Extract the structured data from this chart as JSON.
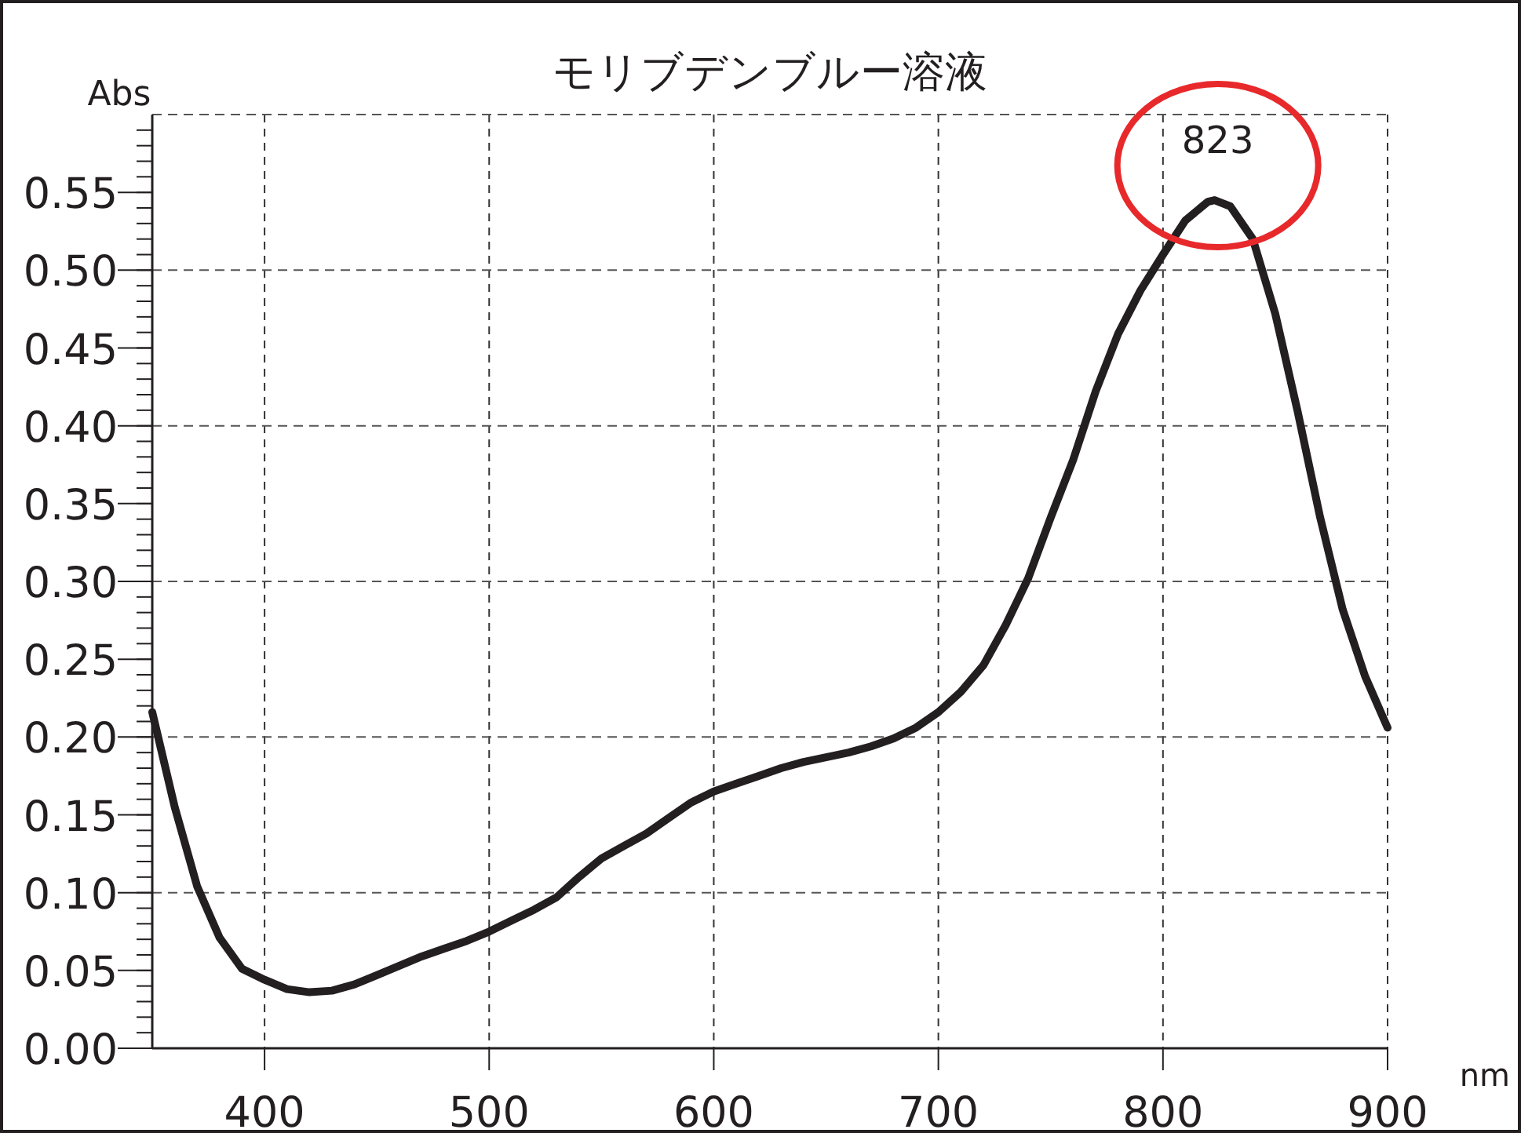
{
  "chart_data": {
    "type": "line",
    "title": "モリブデンブルー溶液",
    "xlabel": "nm",
    "ylabel": "Abs",
    "x": [
      350,
      360,
      370,
      380,
      390,
      400,
      410,
      420,
      430,
      440,
      450,
      460,
      470,
      480,
      490,
      500,
      510,
      520,
      530,
      540,
      550,
      560,
      570,
      580,
      590,
      600,
      610,
      620,
      630,
      640,
      650,
      660,
      670,
      680,
      690,
      700,
      710,
      720,
      730,
      740,
      750,
      760,
      770,
      780,
      790,
      800,
      810,
      820,
      823,
      830,
      840,
      850,
      860,
      870,
      880,
      890,
      900
    ],
    "series": [
      {
        "color": "#231f20",
        "values": [
          0.216,
          0.155,
          0.104,
          0.071,
          0.051,
          0.044,
          0.038,
          0.036,
          0.037,
          0.041,
          0.047,
          0.053,
          0.059,
          0.064,
          0.069,
          0.075,
          0.082,
          0.089,
          0.097,
          0.11,
          0.122,
          0.13,
          0.138,
          0.148,
          0.158,
          0.165,
          0.17,
          0.175,
          0.18,
          0.184,
          0.187,
          0.19,
          0.194,
          0.199,
          0.206,
          0.216,
          0.229,
          0.246,
          0.272,
          0.302,
          0.341,
          0.378,
          0.422,
          0.459,
          0.487,
          0.51,
          0.532,
          0.544,
          0.545,
          0.541,
          0.52,
          0.472,
          0.409,
          0.341,
          0.282,
          0.239,
          0.206
        ]
      }
    ],
    "xlim": [
      350,
      900
    ],
    "xticks": [
      400,
      500,
      600,
      700,
      800,
      900
    ],
    "ylim": [
      0,
      0.6
    ],
    "yticks": [
      {
        "value": 0,
        "label": "0.00"
      },
      {
        "value": 0.05,
        "label": "0.05"
      },
      {
        "value": 0.1,
        "label": "0.10"
      },
      {
        "value": 0.15,
        "label": "0.15"
      },
      {
        "value": 0.2,
        "label": "0.20"
      },
      {
        "value": 0.25,
        "label": "0.25"
      },
      {
        "value": 0.3,
        "label": "0.30"
      },
      {
        "value": 0.35,
        "label": "0.35"
      },
      {
        "value": 0.4,
        "label": "0.40"
      },
      {
        "value": 0.45,
        "label": "0.45"
      },
      {
        "value": 0.5,
        "label": "0.50"
      },
      {
        "value": 0.55,
        "label": "0.55"
      }
    ],
    "grid": true,
    "marker": "none",
    "line_style": "solid",
    "annotations": [
      {
        "text": "823",
        "x": 823,
        "y": 0.545
      }
    ]
  }
}
